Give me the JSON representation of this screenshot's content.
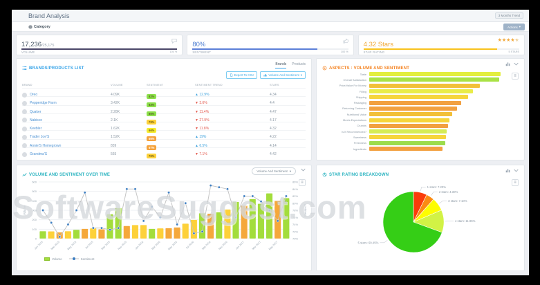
{
  "header": {
    "title": "Brand Analysis",
    "trend_label": "3 Months Trend"
  },
  "filter_bar": {
    "category_label": "Category",
    "actions_label": "Actions",
    "caret": "▾"
  },
  "kpis": {
    "volume": {
      "value": "17,236",
      "total": "/25,175",
      "label": "VOLUME",
      "progress_pct": 100,
      "caption": "100 %",
      "bar_color": "#4a4668"
    },
    "sentiment": {
      "value": "80%",
      "label": "SENTIMENT",
      "progress_pct": 80,
      "caption": "100 %",
      "bar_color": "#5b7fd8",
      "value_color": "#4a7bd0"
    },
    "star_rating": {
      "value": "4.32 Stars",
      "label": "STAR RATING",
      "progress_pct": 86,
      "caption": "5 STARS",
      "bar_color": "#f8c21c",
      "value_color": "#f0a733",
      "stars_pct": 86,
      "stars_glyphs": "★★★★★"
    }
  },
  "brands_card": {
    "title": "BRANDS/PRODUCTS LIST",
    "tabs": [
      "Brands",
      "Products"
    ],
    "active_tab": "Brands",
    "export_button": "Export To CSV",
    "metric_button": "Volume And Sentiment",
    "columns": [
      "BRAND",
      "VOLUME",
      "SENTIMENT",
      "SENTIMENT TREND",
      "STARS"
    ],
    "rows": [
      {
        "brand": "Oreo",
        "volume": "4.09K",
        "sentiment": "82%",
        "badge_bg": "#8ce04a",
        "badge_fg": "#556022",
        "trend": "12.9%",
        "dir": "up",
        "stars": "4.34"
      },
      {
        "brand": "Pepperidge Farm",
        "volume": "3.42K",
        "sentiment": "83%",
        "badge_bg": "#8ce04a",
        "badge_fg": "#556022",
        "trend": "3.6%",
        "dir": "down",
        "stars": "4.4"
      },
      {
        "brand": "Quaker",
        "volume": "2.28K",
        "sentiment": "85%",
        "badge_bg": "#8ce04a",
        "badge_fg": "#556022",
        "trend": "11.4%",
        "dir": "down",
        "stars": "4.47"
      },
      {
        "brand": "Nabisco",
        "volume": "2.1K",
        "sentiment": "79%",
        "badge_bg": "#fdd13a",
        "badge_fg": "#6e5e12",
        "trend": "27.9%",
        "dir": "down",
        "stars": "4.17"
      },
      {
        "brand": "Keebler",
        "volume": "1.62K",
        "sentiment": "66%",
        "badge_bg": "#f6ec2d",
        "badge_fg": "#6e5e12",
        "trend": "11.8%",
        "dir": "down",
        "stars": "4.32"
      },
      {
        "brand": "Trader Joe'S",
        "volume": "1.52K",
        "sentiment": "55%",
        "badge_bg": "#f5a23b",
        "badge_fg": "#ffffff",
        "trend": "19%",
        "dir": "up",
        "stars": "4.22"
      },
      {
        "brand": "Annie'S Homegrown",
        "volume": "839",
        "sentiment": "57%",
        "badge_bg": "#f5a23b",
        "badge_fg": "#ffffff",
        "trend": "6.5%",
        "dir": "up",
        "stars": "4.14"
      },
      {
        "brand": "Grandma'S",
        "volume": "565",
        "sentiment": "76%",
        "badge_bg": "#fdd13a",
        "badge_fg": "#6e5e12",
        "trend": "7.1%",
        "dir": "down",
        "stars": "4.42"
      }
    ]
  },
  "aspects_card": {
    "title": "ASPECTS : VOLUME AND SENTIMENT",
    "chart_data": {
      "type": "bar",
      "orientation": "horizontal",
      "categories": [
        "Taste",
        "Overall Satisfaction",
        "Price/Value For Money",
        "Filling",
        "Shipping",
        "Packaging",
        "Returning Customer",
        "Nutritional Value",
        "Meets Expectations",
        "Crumbs",
        "Is It Recommended?",
        "Sweetness",
        "Freshness",
        "Ingredients"
      ],
      "values": [
        100,
        99,
        84,
        79,
        75,
        70,
        67,
        63,
        61,
        60,
        59,
        58.5,
        58,
        56
      ],
      "colors": [
        "#e3ee3f",
        "#a9e245",
        "#f2c038",
        "#e9ec48",
        "#f6d53c",
        "#f2a040",
        "#f2a040",
        "#f2c038",
        "#f6d53c",
        "#f2a040",
        "#d5ec55",
        "#f6d53c",
        "#9cdc4b",
        "#f2a040"
      ]
    }
  },
  "volume_card": {
    "title": "VOLUME AND SENTIMENT OVER TIME",
    "dropdown_label": "Volume And Sentiment",
    "caret": "▾",
    "chart_data": {
      "type": "bar+line",
      "x_labels": [
        "Jan 2015",
        "Mar 2015",
        "May 2015",
        "Jul 2015",
        "Sep 2015",
        "Nov 2015",
        "Jan 2016",
        "Mar 2016",
        "May 2016",
        "Jul 2016",
        "Sep 2016",
        "Nov 2016",
        "Jan 2017",
        "Mar 2017",
        "May 2017"
      ],
      "label_every": 2,
      "bars": {
        "name": "Volume",
        "values": [
          80,
          78,
          68,
          80,
          95,
          105,
          110,
          100,
          260,
          325,
          135,
          145,
          145,
          105,
          110,
          112,
          120,
          160,
          200,
          270,
          265,
          280,
          310,
          390,
          350,
          420,
          370,
          480,
          400,
          430
        ],
        "colors": [
          "#a3dd3c",
          "#fdd13a",
          "#f5a83b",
          "#fdd13a",
          "#a3dd3c",
          "#f5a83b",
          "#fdd13a",
          "#f5a83b",
          "#a3dd3c",
          "#a3dd3c",
          "#f5a83b",
          "#fdd13a",
          "#fdd13a",
          "#a3dd3c",
          "#fdd13a",
          "#f5a83b",
          "#f5a83b",
          "#fdd13a",
          "#fdd13a",
          "#a3dd3c",
          "#f5a83b",
          "#a3dd3c",
          "#fdd13a",
          "#a3dd3c",
          "#f5a83b",
          "#a3dd3c",
          "#a3dd3c",
          "#a3dd3c",
          "#f5a83b",
          "#a3dd3c"
        ]
      },
      "line": {
        "name": "Sentiment",
        "values": [
          78,
          74.5,
          70.5,
          74,
          78,
          83,
          73,
          73,
          72.5,
          73,
          84,
          84,
          75,
          79,
          76,
          83,
          74,
          80,
          71.5,
          72,
          85,
          84.5,
          84,
          76,
          82,
          82,
          80.5,
          78,
          75,
          82
        ]
      },
      "y_left": {
        "label": "Volume",
        "min": 0,
        "max": 600,
        "step": 100
      },
      "y_right": {
        "label": "Sentiment",
        "min": 70,
        "max": 86,
        "step": 2,
        "suffix": "%"
      },
      "legend": [
        "Volume",
        "Sentiment"
      ]
    }
  },
  "pie_card": {
    "title": "STAR RATING BREAKDOWN",
    "chart_data": {
      "type": "pie",
      "slices": [
        {
          "label": "1 stars",
          "value": 7.2,
          "color": "#fb3c0a"
        },
        {
          "label": "2 stars",
          "value": 4.3,
          "color": "#fb8b12"
        },
        {
          "label": "3 stars",
          "value": 7.1,
          "color": "#fdfd00"
        },
        {
          "label": "4 stars",
          "value": 11.95,
          "color": "#d2f245"
        },
        {
          "label": "5 stars",
          "value": 69.45,
          "color": "#35ce16"
        }
      ]
    }
  },
  "watermark": "SoftwareSuggest.com"
}
